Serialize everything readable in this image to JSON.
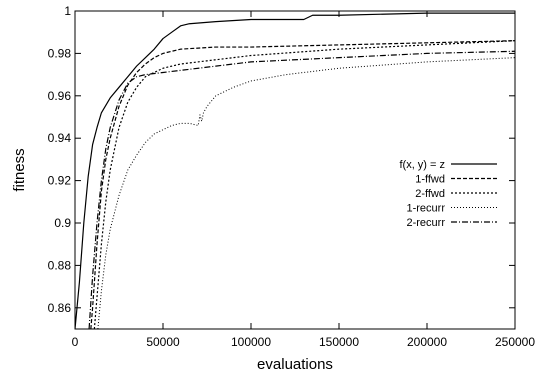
{
  "chart_data": {
    "type": "line",
    "xlabel": "evaluations",
    "ylabel": "fitness",
    "xlim": [
      0,
      250000
    ],
    "ylim": [
      0.85,
      1.0
    ],
    "xticks": [
      0,
      50000,
      100000,
      150000,
      200000,
      250000
    ],
    "yticks": [
      0.86,
      0.88,
      0.9,
      0.92,
      0.94,
      0.96,
      0.98,
      1.0
    ],
    "xtick_labels": [
      "0",
      "50000",
      "100000",
      "150000",
      "200000",
      "250000"
    ],
    "ytick_labels": [
      "0.86",
      "0.88",
      "0.9",
      "0.92",
      "0.94",
      "0.96",
      "0.98",
      "1"
    ],
    "grid": false,
    "legend_position": "right",
    "series": [
      {
        "name": "f(x, y) = z",
        "dash": "solid",
        "x": [
          0,
          2500,
          5000,
          7500,
          10000,
          12500,
          15000,
          20000,
          25000,
          30000,
          35000,
          40000,
          45000,
          50000,
          55000,
          60000,
          65000,
          80000,
          100000,
          130000,
          135000,
          150000,
          200000,
          250000
        ],
        "y": [
          0.85,
          0.872,
          0.9,
          0.922,
          0.937,
          0.945,
          0.952,
          0.959,
          0.964,
          0.969,
          0.974,
          0.978,
          0.982,
          0.987,
          0.99,
          0.993,
          0.994,
          0.995,
          0.996,
          0.996,
          0.998,
          0.998,
          0.999,
          0.999
        ]
      },
      {
        "name": "1-ffwd",
        "dash": "dashed",
        "x": [
          9000,
          10000,
          12500,
          15000,
          17500,
          20000,
          25000,
          30000,
          35000,
          40000,
          45000,
          50000,
          60000,
          80000,
          100000,
          150000,
          200000,
          250000
        ],
        "y": [
          0.85,
          0.86,
          0.89,
          0.915,
          0.93,
          0.94,
          0.955,
          0.965,
          0.971,
          0.975,
          0.978,
          0.98,
          0.982,
          0.983,
          0.983,
          0.984,
          0.985,
          0.986
        ]
      },
      {
        "name": "2-ffwd",
        "dash": "dotted",
        "x": [
          11000,
          12500,
          15000,
          17500,
          20000,
          25000,
          30000,
          35000,
          40000,
          50000,
          60000,
          80000,
          100000,
          150000,
          200000,
          250000
        ],
        "y": [
          0.85,
          0.865,
          0.89,
          0.91,
          0.925,
          0.945,
          0.957,
          0.964,
          0.969,
          0.973,
          0.975,
          0.977,
          0.979,
          0.982,
          0.984,
          0.986
        ]
      },
      {
        "name": "1-recurr",
        "dash": "sparse-dotted",
        "x": [
          13000,
          15000,
          17500,
          20000,
          25000,
          30000,
          35000,
          40000,
          45000,
          50000,
          55000,
          60000,
          65000,
          70000,
          71000,
          72000,
          73000,
          75000,
          80000,
          90000,
          100000,
          120000,
          150000,
          200000,
          250000
        ],
        "y": [
          0.85,
          0.868,
          0.885,
          0.897,
          0.913,
          0.925,
          0.932,
          0.938,
          0.942,
          0.944,
          0.946,
          0.947,
          0.947,
          0.946,
          0.951,
          0.948,
          0.952,
          0.955,
          0.96,
          0.964,
          0.967,
          0.97,
          0.973,
          0.976,
          0.978
        ]
      },
      {
        "name": "2-recurr",
        "dash": "dashdot",
        "x": [
          8000,
          10000,
          12500,
          15000,
          17500,
          20000,
          25000,
          30000,
          35000,
          40000,
          50000,
          60000,
          80000,
          100000,
          150000,
          200000,
          250000
        ],
        "y": [
          0.85,
          0.875,
          0.9,
          0.92,
          0.935,
          0.945,
          0.958,
          0.966,
          0.969,
          0.97,
          0.971,
          0.972,
          0.974,
          0.976,
          0.978,
          0.98,
          0.981
        ]
      }
    ]
  }
}
